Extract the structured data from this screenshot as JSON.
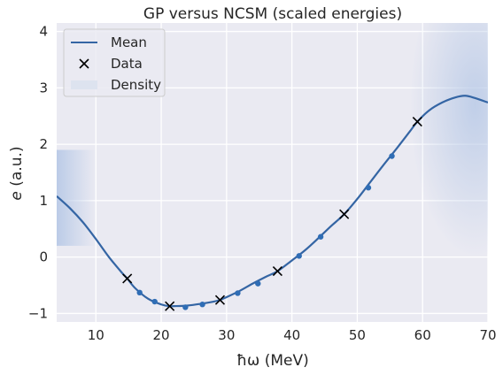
{
  "chart_data": {
    "type": "line",
    "title": "GP versus NCSM (scaled energies)",
    "xlabel": "ħω (MeV)",
    "ylabel_var": "e",
    "ylabel_unit": " (a.u.)",
    "xlim": [
      4,
      70
    ],
    "ylim": [
      -1.15,
      4.15
    ],
    "xticks": [
      10,
      20,
      30,
      40,
      50,
      60,
      70
    ],
    "yticks": [
      -1,
      0,
      1,
      2,
      3,
      4
    ],
    "xtick_labels": [
      "10",
      "20",
      "30",
      "40",
      "50",
      "60",
      "70"
    ],
    "ytick_labels": [
      "−1",
      "0",
      "1",
      "2",
      "3",
      "4"
    ],
    "grid": true,
    "legend_position": "top-left",
    "legend": [
      "Mean",
      "Data",
      "Density"
    ],
    "colors": {
      "mean": "#3465a4",
      "points": "#2f6db5",
      "data_marker": "#000000",
      "background": "#eaeaf2",
      "grid": "#ffffff",
      "density": "#b6c8e6"
    },
    "series": [
      {
        "name": "Mean",
        "kind": "line",
        "x": [
          4,
          6,
          8,
          10,
          12,
          14,
          14.8,
          16,
          18,
          20,
          21.3,
          22,
          24,
          26,
          28,
          29,
          30,
          32,
          34,
          36,
          37.8,
          40,
          42,
          44,
          46,
          48,
          50,
          52,
          54,
          56,
          58,
          59.2,
          61,
          63,
          65,
          66.5,
          68,
          70
        ],
        "y": [
          1.08,
          0.87,
          0.62,
          0.32,
          0.0,
          -0.28,
          -0.38,
          -0.55,
          -0.74,
          -0.84,
          -0.87,
          -0.87,
          -0.86,
          -0.83,
          -0.79,
          -0.76,
          -0.71,
          -0.6,
          -0.47,
          -0.35,
          -0.25,
          -0.06,
          0.12,
          0.33,
          0.55,
          0.76,
          1.03,
          1.33,
          1.63,
          1.92,
          2.22,
          2.4,
          2.6,
          2.74,
          2.83,
          2.86,
          2.82,
          2.74
        ]
      },
      {
        "name": "Data",
        "kind": "marker",
        "x": [
          14.8,
          21.3,
          29.0,
          37.8,
          48.0,
          59.2
        ],
        "y": [
          -0.38,
          -0.87,
          -0.76,
          -0.25,
          0.76,
          2.4
        ]
      },
      {
        "kind": "points",
        "x": [
          16.7,
          19.0,
          23.7,
          26.3,
          31.7,
          34.8,
          41.1,
          44.4,
          51.7,
          55.3
        ],
        "y": [
          -0.63,
          -0.79,
          -0.89,
          -0.84,
          -0.64,
          -0.47,
          0.02,
          0.36,
          1.23,
          1.79
        ]
      }
    ]
  }
}
